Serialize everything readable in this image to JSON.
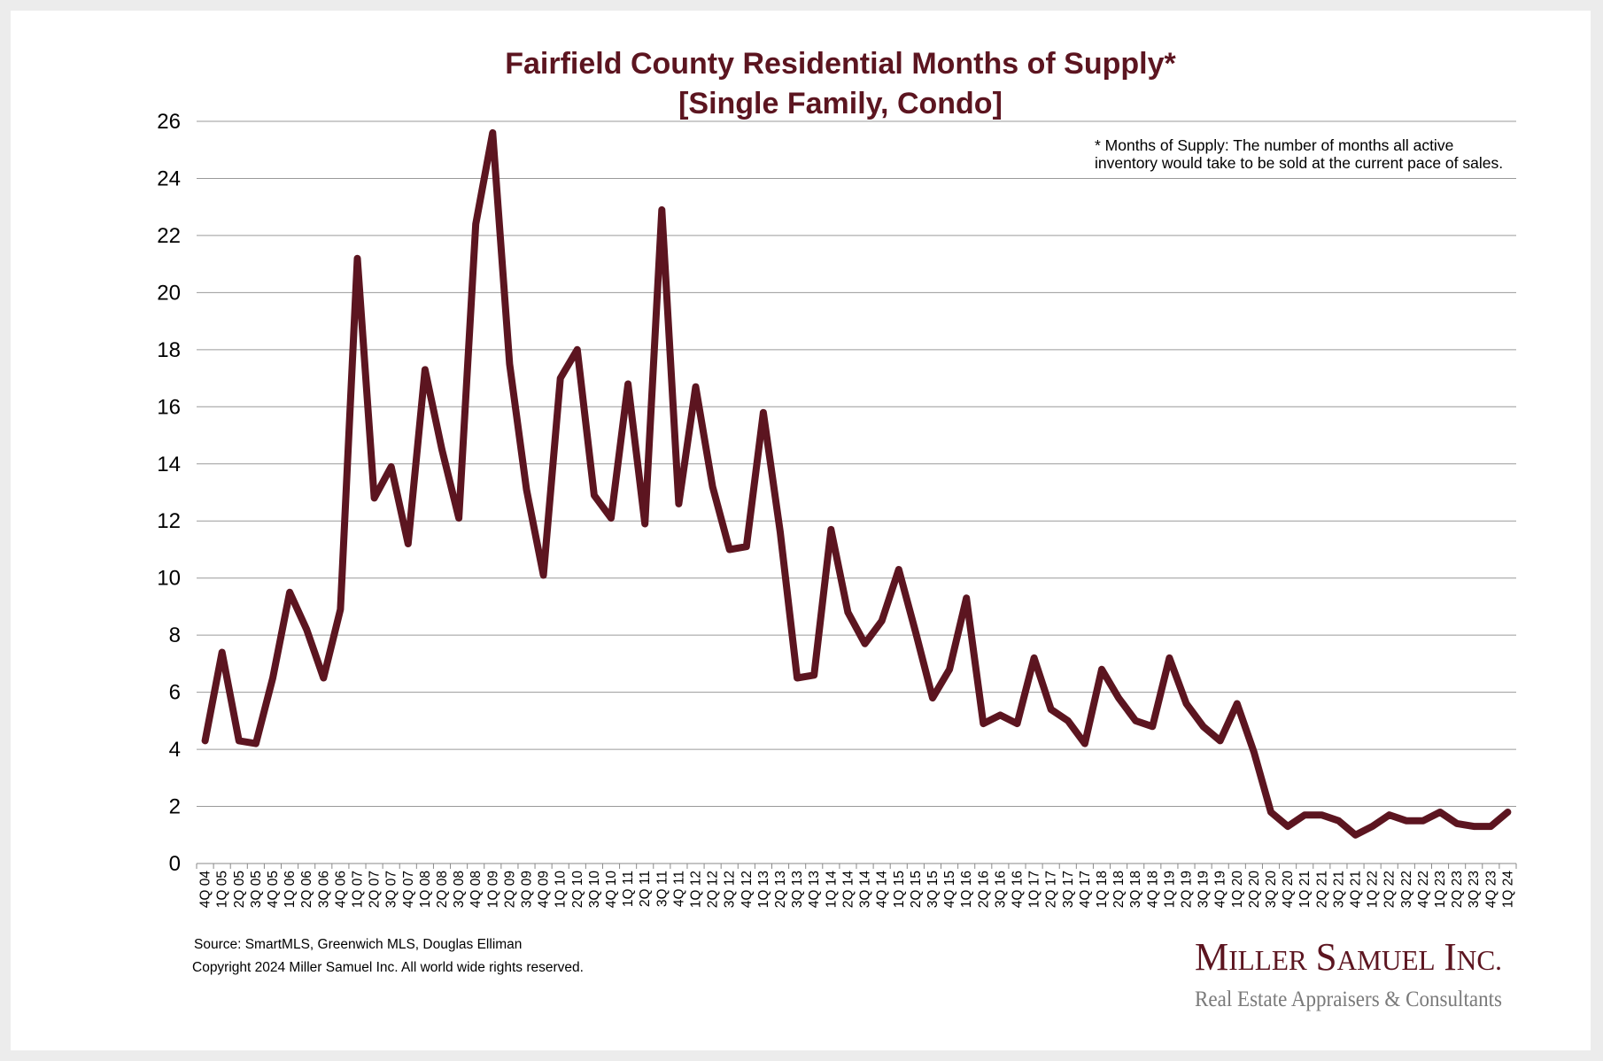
{
  "chart_data": {
    "type": "line",
    "title": "Fairfield County Residential Months of Supply*",
    "subtitle": "[Single Family, Condo]",
    "xlabel": "",
    "ylabel": "",
    "ylim": [
      0,
      26
    ],
    "yticks": [
      0,
      2,
      4,
      6,
      8,
      10,
      12,
      14,
      16,
      18,
      20,
      22,
      24,
      26
    ],
    "grid": true,
    "line_color": "#5c1520",
    "categories": [
      "4Q 04",
      "1Q 05",
      "2Q 05",
      "3Q 05",
      "4Q 05",
      "1Q 06",
      "2Q 06",
      "3Q 06",
      "4Q 06",
      "1Q 07",
      "2Q 07",
      "3Q 07",
      "4Q 07",
      "1Q 08",
      "2Q 08",
      "3Q 08",
      "4Q 08",
      "1Q 09",
      "2Q 09",
      "3Q 09",
      "4Q 09",
      "1Q 10",
      "2Q 10",
      "3Q 10",
      "4Q 10",
      "1Q 11",
      "2Q 11",
      "3Q 11",
      "4Q 11",
      "1Q 12",
      "2Q 12",
      "3Q 12",
      "4Q 12",
      "1Q 13",
      "2Q 13",
      "3Q 13",
      "4Q 13",
      "1Q 14",
      "2Q 14",
      "3Q 14",
      "4Q 14",
      "1Q 15",
      "2Q 15",
      "3Q 15",
      "4Q 15",
      "1Q 16",
      "2Q 16",
      "3Q 16",
      "4Q 16",
      "1Q 17",
      "2Q 17",
      "3Q 17",
      "4Q 17",
      "1Q 18",
      "2Q 18",
      "3Q 18",
      "4Q 18",
      "1Q 19",
      "2Q 19",
      "3Q 19",
      "4Q 19",
      "1Q 20",
      "2Q 20",
      "3Q 20",
      "4Q 20",
      "1Q 21",
      "2Q 21",
      "3Q 21",
      "4Q 21",
      "1Q 22",
      "2Q 22",
      "3Q 22",
      "4Q 22",
      "1Q 23",
      "2Q 23",
      "3Q 23",
      "4Q 23",
      "1Q 24"
    ],
    "series": [
      {
        "name": "Months of Supply",
        "values": [
          4.3,
          7.4,
          4.3,
          4.2,
          6.5,
          9.5,
          8.2,
          6.5,
          8.9,
          21.2,
          12.8,
          13.9,
          11.2,
          17.3,
          14.5,
          12.1,
          22.4,
          25.6,
          17.5,
          13.1,
          10.1,
          17.0,
          18.0,
          12.9,
          12.1,
          16.8,
          11.9,
          22.9,
          12.6,
          16.7,
          13.2,
          11.0,
          11.1,
          15.8,
          11.6,
          6.5,
          6.6,
          11.7,
          8.8,
          7.7,
          8.5,
          10.3,
          8.1,
          5.8,
          6.8,
          9.3,
          4.9,
          5.2,
          4.9,
          7.2,
          5.4,
          5.0,
          4.2,
          6.8,
          5.8,
          5.0,
          4.8,
          7.2,
          5.6,
          4.8,
          4.3,
          5.6,
          3.9,
          1.8,
          1.3,
          1.7,
          1.7,
          1.5,
          1.0,
          1.3,
          1.7,
          1.5,
          1.5,
          1.8,
          1.4,
          1.3,
          1.3,
          1.8
        ]
      }
    ],
    "annotation_line1": "* Months of Supply: The number of months all active",
    "annotation_line2": "inventory would take to be sold at the current pace of sales."
  },
  "footer": {
    "source": "Source: SmartMLS, Greenwich MLS, Douglas Elliman",
    "copyright": "Copyright 2024 Miller Samuel Inc.  All world wide rights reserved."
  },
  "logo": {
    "name": "Miller Samuel Inc.",
    "tagline": "Real Estate Appraisers & Consultants"
  }
}
